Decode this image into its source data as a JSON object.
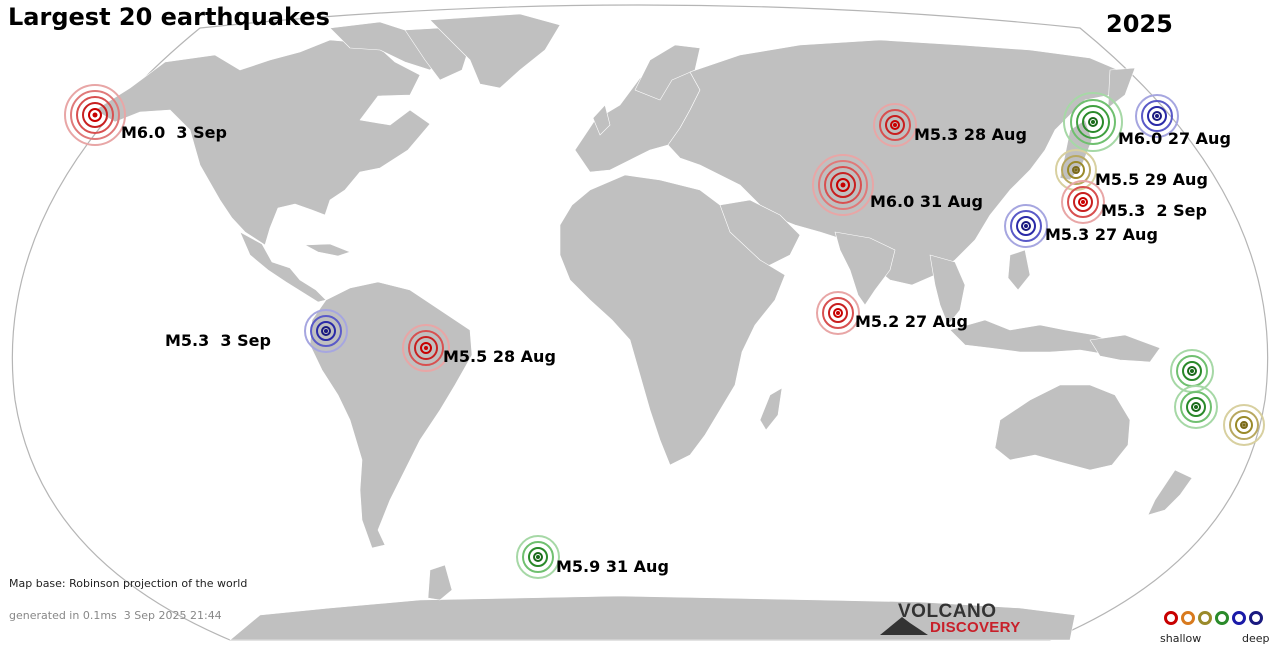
{
  "map": {
    "title": "Largest 20 earthquakes",
    "year": "2025",
    "map_base": "Map base: Robinson projection of the world",
    "generated": "generated in 0.1ms  3 Sep 2025 21:44",
    "logo_line1": "VOLCANO",
    "logo_line2": "DISCOVERY",
    "legend_shallow": "shallow",
    "legend_deep": "deep"
  },
  "colors": {
    "land": "#c0c0c0",
    "ocean": "#ffffff",
    "outline": "#bbbbbb",
    "depth": [
      "#c80000",
      "#d87a1e",
      "#9a8a2a",
      "#2a8a2a",
      "#1a1aa8",
      "#1a1a80"
    ]
  },
  "quakes": [
    {
      "label": "M6.0  3 Sep",
      "depth": "shallow"
    },
    {
      "label": "M5.3 28 Aug",
      "depth": "shallow"
    },
    {
      "label": "M6.0 27 Aug",
      "depth": "deep"
    },
    {
      "label": "M5.5 29 Aug",
      "depth": "intermediate"
    },
    {
      "label": "M6.0 31 Aug",
      "depth": "shallow"
    },
    {
      "label": "M5.3  2 Sep",
      "depth": "shallow"
    },
    {
      "label": "M5.3 27 Aug",
      "depth": "deep"
    },
    {
      "label": "M5.2 27 Aug",
      "depth": "shallow"
    },
    {
      "label": "M5.3  3 Sep",
      "depth": "deep"
    },
    {
      "label": "M5.5 28 Aug",
      "depth": "shallow"
    },
    {
      "label": "M5.9 31 Aug",
      "depth": "medium"
    },
    {
      "label": "",
      "depth": "medium"
    },
    {
      "label": "",
      "depth": "medium"
    },
    {
      "label": "",
      "depth": "medium"
    },
    {
      "label": "",
      "depth": "intermediate"
    }
  ]
}
